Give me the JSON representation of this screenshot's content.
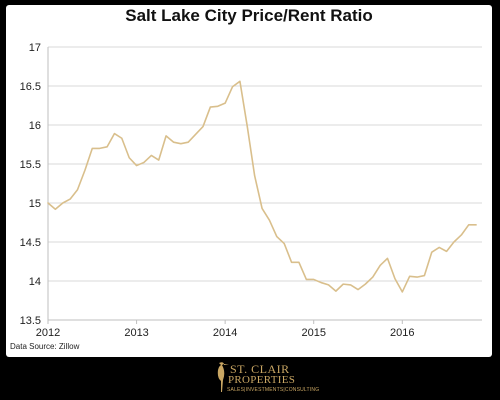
{
  "chart_data": {
    "type": "line",
    "title": "Salt Lake City Price/Rent Ratio",
    "xlabel": "",
    "ylabel": "",
    "xlim": [
      2012,
      2016.9
    ],
    "ylim": [
      13.5,
      17
    ],
    "x_ticks": [
      "2012",
      "2013",
      "2014",
      "2015",
      "2016"
    ],
    "y_ticks": [
      "13.5",
      "14",
      "14.5",
      "15",
      "15.5",
      "16",
      "16.5",
      "17"
    ],
    "grid": "horizontal",
    "line_color": "#d9bf8c",
    "series": [
      {
        "x": [
          2012.0,
          2012.083,
          2012.167,
          2012.25,
          2012.333,
          2012.417,
          2012.5,
          2012.583,
          2012.667,
          2012.75,
          2012.833,
          2012.917,
          2013.0,
          2013.083,
          2013.167,
          2013.25,
          2013.333,
          2013.417,
          2013.5,
          2013.583,
          2013.667,
          2013.75,
          2013.833,
          2013.917,
          2014.0,
          2014.083,
          2014.167,
          2014.25,
          2014.333,
          2014.417,
          2014.5,
          2014.583,
          2014.667,
          2014.75,
          2014.833,
          2014.917,
          2015.0,
          2015.083,
          2015.167,
          2015.25,
          2015.333,
          2015.417,
          2015.5,
          2015.583,
          2015.667,
          2015.75,
          2015.833,
          2015.917,
          2016.0,
          2016.083,
          2016.167,
          2016.25,
          2016.333,
          2016.417,
          2016.5,
          2016.583,
          2016.667,
          2016.75,
          2016.833
        ],
        "values": [
          15.0,
          14.92,
          15.0,
          15.05,
          15.17,
          15.42,
          15.7,
          15.7,
          15.72,
          15.89,
          15.83,
          15.58,
          15.48,
          15.52,
          15.61,
          15.55,
          15.86,
          15.78,
          15.76,
          15.78,
          15.88,
          15.98,
          16.23,
          16.24,
          16.28,
          16.49,
          16.56,
          15.98,
          15.35,
          14.93,
          14.78,
          14.57,
          14.48,
          14.24,
          14.24,
          14.02,
          14.02,
          13.98,
          13.95,
          13.87,
          13.96,
          13.95,
          13.89,
          13.96,
          14.05,
          14.2,
          14.29,
          14.03,
          13.86,
          14.06,
          14.05,
          14.07,
          14.37,
          14.43,
          14.38,
          14.5,
          14.59,
          14.72,
          14.72
        ]
      }
    ]
  },
  "footer": {
    "source_label": "Data Source: Zillow"
  },
  "logo": {
    "line1": "ST. CLAIR",
    "line2": "PROPERTIES",
    "line3": "SALES|INVESTMENTS|CONSULTING",
    "color": "#c9a663"
  }
}
